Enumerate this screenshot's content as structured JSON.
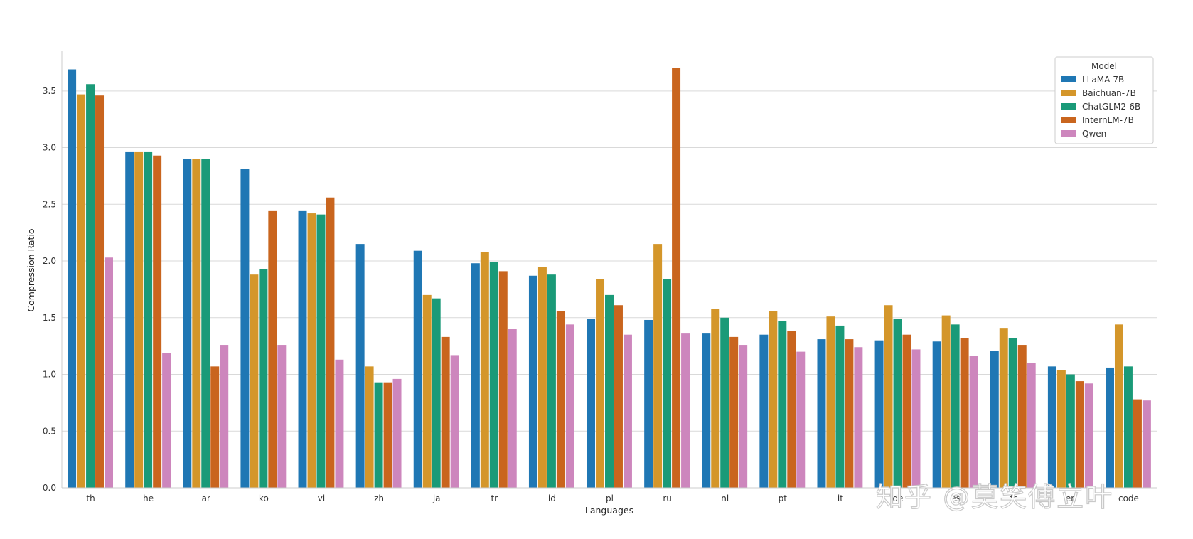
{
  "chart_data": {
    "type": "bar",
    "title": "",
    "xlabel": "Languages",
    "ylabel": "Compression Ratio",
    "ylim": [
      0,
      3.85
    ],
    "yticks": [
      "0.0",
      "0.5",
      "1.0",
      "1.5",
      "2.0",
      "2.5",
      "3.0",
      "3.5"
    ],
    "grid": "horizontal",
    "legend_title": "Model",
    "legend_position": "top-right",
    "categories": [
      "th",
      "he",
      "ar",
      "ko",
      "vi",
      "zh",
      "ja",
      "tr",
      "id",
      "pl",
      "ru",
      "nl",
      "pt",
      "it",
      "de",
      "es",
      "fr",
      "en",
      "code"
    ],
    "series": [
      {
        "name": "LLaMA-7B",
        "color": "#1f77b4",
        "values": [
          3.69,
          2.96,
          2.9,
          2.81,
          2.44,
          2.15,
          2.09,
          1.98,
          1.87,
          1.49,
          1.48,
          1.36,
          1.35,
          1.31,
          1.3,
          1.29,
          1.21,
          1.07,
          1.06
        ]
      },
      {
        "name": "Baichuan-7B",
        "color": "#d4962a",
        "values": [
          3.47,
          2.96,
          2.9,
          1.88,
          2.42,
          1.07,
          1.7,
          2.08,
          1.95,
          1.84,
          2.15,
          1.58,
          1.56,
          1.51,
          1.61,
          1.52,
          1.41,
          1.04,
          1.44
        ]
      },
      {
        "name": "ChatGLM2-6B",
        "color": "#1a9a78",
        "values": [
          3.56,
          2.96,
          2.9,
          1.93,
          2.41,
          0.93,
          1.67,
          1.99,
          1.88,
          1.7,
          1.84,
          1.5,
          1.47,
          1.43,
          1.49,
          1.44,
          1.32,
          1.0,
          1.07
        ]
      },
      {
        "name": "InternLM-7B",
        "color": "#c9651e",
        "values": [
          3.46,
          2.93,
          1.07,
          2.44,
          2.56,
          0.93,
          1.33,
          1.91,
          1.56,
          1.61,
          3.7,
          1.33,
          1.38,
          1.31,
          1.35,
          1.32,
          1.26,
          0.94,
          0.78
        ]
      },
      {
        "name": "Qwen",
        "color": "#cd86bd",
        "values": [
          2.03,
          1.19,
          1.26,
          1.26,
          1.13,
          0.96,
          1.17,
          1.4,
          1.44,
          1.35,
          1.36,
          1.26,
          1.2,
          1.24,
          1.22,
          1.16,
          1.1,
          0.92,
          0.77
        ]
      }
    ]
  },
  "watermark": "知乎 @莫笑傅立叶"
}
